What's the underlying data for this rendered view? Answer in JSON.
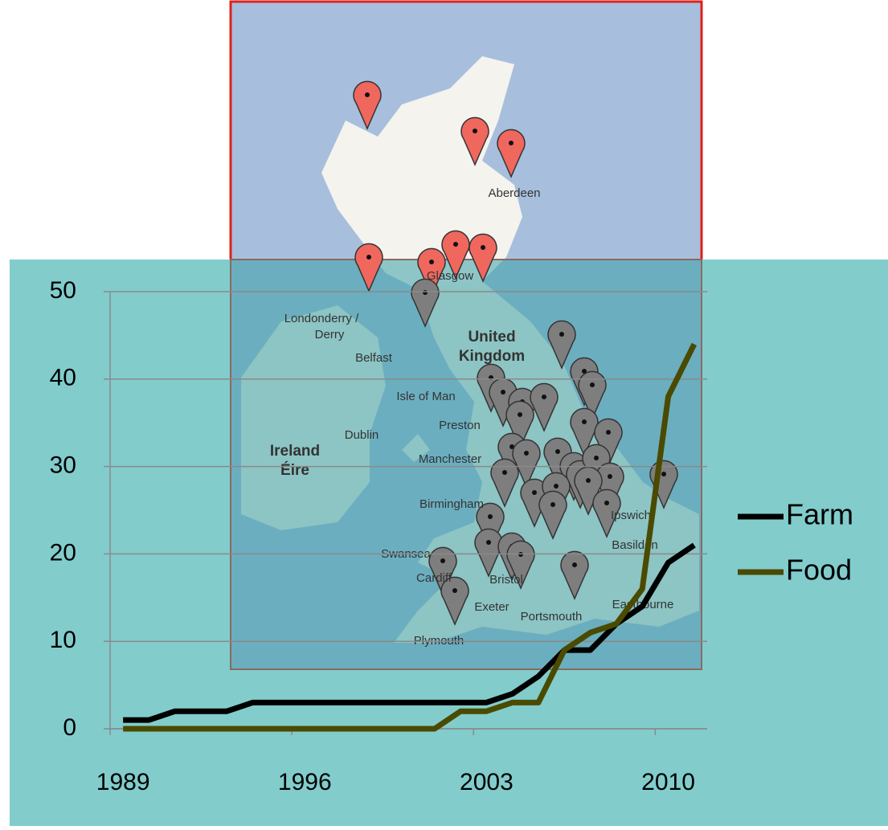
{
  "chart_data": {
    "type": "line",
    "categories": [
      "1989",
      null,
      null,
      null,
      null,
      null,
      null,
      "1996",
      null,
      null,
      null,
      null,
      null,
      null,
      "2003",
      null,
      null,
      null,
      null,
      null,
      null,
      "2010",
      null
    ],
    "series": [
      {
        "name": "Farm",
        "color": "#000000",
        "values": [
          1,
          1,
          2,
          2,
          2,
          3,
          3,
          3,
          3,
          3,
          3,
          3,
          3,
          3,
          3,
          4,
          6,
          9,
          9,
          12,
          14,
          19,
          21
        ]
      },
      {
        "name": "Food",
        "color": "#4a4a00",
        "values": [
          0,
          0,
          0,
          0,
          0,
          0,
          0,
          0,
          0,
          0,
          0,
          0,
          0,
          2,
          2,
          3,
          3,
          9,
          11,
          12,
          16,
          38,
          44
        ]
      }
    ],
    "ylim": [
      0,
      50
    ],
    "yticks": [
      0,
      10,
      20,
      30,
      40,
      50
    ],
    "grid": true,
    "legend": "right"
  },
  "map": {
    "labels": [
      "Aberdeen",
      "Glasgow",
      "Londonderry /",
      "Derry",
      "Belfast",
      "United",
      "Kingdom",
      "Isle of Man",
      "Preston",
      "Ireland",
      "Éire",
      "Dublin",
      "Manchester",
      "Birmingham",
      "Swansea",
      "Cardiff",
      "Bristol",
      "Exeter",
      "Portsmouth",
      "Plymouth",
      "Eastbourne",
      "Basildon",
      "Ipswich"
    ]
  }
}
